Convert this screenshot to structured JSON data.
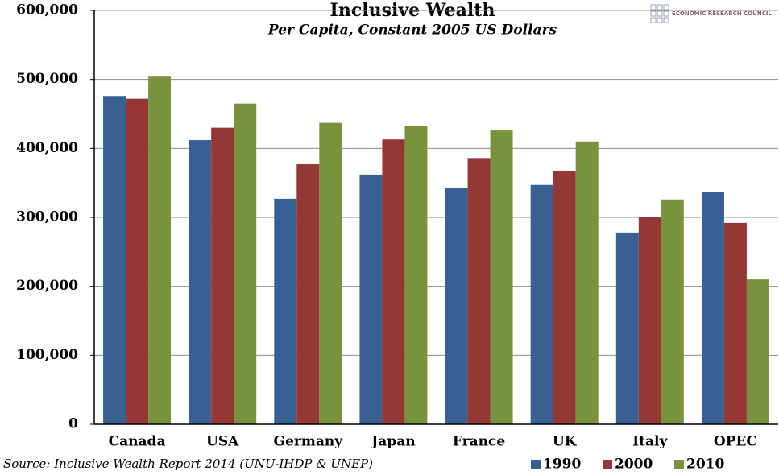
{
  "chart_data": {
    "type": "bar",
    "title": "Inclusive Wealth",
    "subtitle": "Per Capita, Constant 2005 US Dollars",
    "source": "Source: Inclusive Wealth Report 2014 (UNU-IHDP & UNEP)",
    "logo": "ECONOMIC RESEARCH COUNCIL",
    "categories": [
      "Canada",
      "USA",
      "Germany",
      "Japan",
      "France",
      "UK",
      "Italy",
      "OPEC"
    ],
    "series": [
      {
        "name": "1990",
        "color": "#386092",
        "values": [
          476000,
          412000,
          327000,
          362000,
          343000,
          347000,
          278000,
          337000
        ]
      },
      {
        "name": "2000",
        "color": "#953735",
        "values": [
          472000,
          430000,
          377000,
          413000,
          386000,
          367000,
          301000,
          292000
        ]
      },
      {
        "name": "2010",
        "color": "#77933c",
        "values": [
          504000,
          465000,
          437000,
          433000,
          426000,
          410000,
          326000,
          210000
        ]
      }
    ],
    "ylim": [
      0,
      600000
    ],
    "yticks": [
      0,
      {
        "value": 100000,
        "label": "100,000"
      },
      {
        "value": 200000,
        "label": "200,000"
      },
      {
        "value": 300000,
        "label": "300,000"
      },
      {
        "value": 400000,
        "label": "400,000"
      },
      {
        "value": 500000,
        "label": "500,000"
      },
      {
        "value": 600000,
        "label": "600,000"
      }
    ],
    "grid": true,
    "legend": "bottom-right"
  }
}
